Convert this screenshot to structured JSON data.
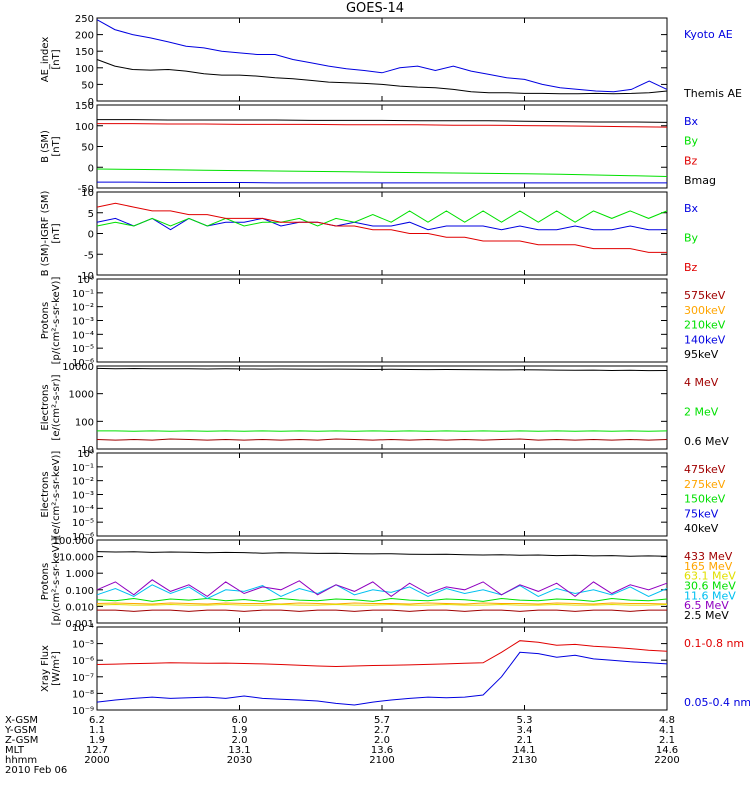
{
  "title": "GOES-14",
  "colors": {
    "black": "#000000",
    "red": "#e00000",
    "green": "#00e000",
    "blue": "#0000e0",
    "orange": "#ffa500",
    "yellow": "#e0e000",
    "cyan": "#00c0f0",
    "purple": "#9000c0",
    "darkred": "#a00000"
  },
  "chart_data": [
    {
      "type": "line",
      "ylabel": "AE_index\n[nT]",
      "scale": "linear",
      "ylim": [
        0,
        250
      ],
      "yticks": [
        "0",
        "50",
        "100",
        "150",
        "200",
        "250"
      ],
      "series": [
        {
          "name": "Kyoto AE",
          "color": "blue",
          "values": [
            245,
            215,
            200,
            190,
            178,
            165,
            160,
            150,
            145,
            140,
            140,
            125,
            115,
            105,
            97,
            92,
            85,
            100,
            105,
            92,
            105,
            90,
            80,
            70,
            65,
            50,
            40,
            35,
            30,
            28,
            35,
            60,
            35
          ]
        },
        {
          "name": "Themis AE",
          "color": "black",
          "values": [
            125,
            105,
            95,
            93,
            95,
            90,
            82,
            78,
            78,
            75,
            70,
            67,
            62,
            57,
            55,
            53,
            50,
            45,
            42,
            40,
            35,
            28,
            25,
            25,
            23,
            23,
            22,
            22,
            23,
            22,
            23,
            25,
            30
          ]
        }
      ]
    },
    {
      "type": "line",
      "ylabel": "B (SM)\n[nT]",
      "scale": "linear",
      "ylim": [
        -60,
        150
      ],
      "yticks": [
        "-50",
        "0",
        "50",
        "100",
        "150"
      ],
      "series": [
        {
          "name": "Bx",
          "color": "blue",
          "values": [
            -45,
            -45,
            -46,
            -46,
            -46,
            -47,
            -47,
            -47,
            -47,
            -47,
            -47,
            -47,
            -47,
            -47,
            -47,
            -47,
            -47
          ]
        },
        {
          "name": "By",
          "color": "green",
          "values": [
            -12,
            -13,
            -14,
            -15,
            -16,
            -17,
            -18,
            -19,
            -20,
            -21,
            -22,
            -23,
            -24,
            -25,
            -27,
            -29,
            -31
          ]
        },
        {
          "name": "Bz",
          "color": "red",
          "values": [
            103,
            103,
            102,
            102,
            101,
            101,
            101,
            100,
            100,
            100,
            99,
            99,
            98,
            97,
            96,
            95,
            94
          ]
        },
        {
          "name": "Bmag",
          "color": "black",
          "values": [
            113,
            113,
            112,
            112,
            112,
            112,
            111,
            111,
            111,
            110,
            110,
            110,
            109,
            108,
            107,
            107,
            106
          ]
        }
      ]
    },
    {
      "type": "line",
      "ylabel": "B (SM)-IGRF (SM)\n[nT]",
      "scale": "linear",
      "ylim": [
        -12,
        10
      ],
      "yticks": [
        "-10",
        "-5",
        "0",
        "5",
        "10"
      ],
      "series": [
        {
          "name": "Bx",
          "color": "blue",
          "values": [
            2,
            3,
            1,
            3,
            0,
            3,
            1,
            2,
            2,
            3,
            1,
            2,
            2,
            1,
            2,
            1,
            1,
            2,
            0,
            1,
            1,
            1,
            0,
            1,
            0,
            0,
            1,
            0,
            0,
            1,
            0,
            0
          ]
        },
        {
          "name": "By",
          "color": "green",
          "values": [
            1,
            2,
            1,
            3,
            1,
            3,
            1,
            3,
            1,
            2,
            2,
            3,
            1,
            3,
            2,
            4,
            2,
            5,
            2,
            5,
            2,
            5,
            2,
            5,
            2,
            5,
            2,
            5,
            3,
            5,
            3,
            5
          ]
        },
        {
          "name": "Bz",
          "color": "red",
          "values": [
            6,
            7,
            6,
            5,
            5,
            4,
            4,
            3,
            3,
            3,
            2,
            2,
            2,
            1,
            1,
            0,
            0,
            -1,
            -1,
            -2,
            -2,
            -3,
            -3,
            -3,
            -4,
            -4,
            -4,
            -5,
            -5,
            -5,
            -6,
            -6
          ]
        }
      ]
    },
    {
      "type": "line",
      "ylabel": "Protons\n[p/(cm²-s-sr-keV)]",
      "scale": "log",
      "ylim": [
        1e-06,
        1
      ],
      "yticks": [
        "10⁻⁶",
        "10⁻⁵",
        "10⁻⁴",
        "10⁻³",
        "10⁻²",
        "10⁻¹",
        "10⁰"
      ],
      "series": [
        {
          "name": "575keV",
          "color": "darkred",
          "values": []
        },
        {
          "name": "300keV",
          "color": "orange",
          "values": []
        },
        {
          "name": "210keV",
          "color": "green",
          "values": []
        },
        {
          "name": "140keV",
          "color": "blue",
          "values": []
        },
        {
          "name": "95keV",
          "color": "black",
          "values": []
        }
      ]
    },
    {
      "type": "line",
      "ylabel": "Electrons\n[e/(cm²-s-sr)]",
      "scale": "log",
      "ylim": [
        10,
        10000
      ],
      "yticks": [
        "10",
        "100",
        "1000",
        "10000"
      ],
      "series": [
        {
          "name": "4 MeV",
          "color": "darkred",
          "values": [
            22,
            21,
            22,
            21,
            23,
            22,
            21,
            22,
            21,
            22,
            21,
            22,
            21,
            23,
            22,
            21,
            22,
            21,
            22,
            21,
            22,
            21,
            22,
            23,
            21,
            22,
            21,
            22,
            21,
            22,
            21,
            22
          ]
        },
        {
          "name": "2 MeV",
          "color": "green",
          "values": [
            45,
            45,
            44,
            45,
            44,
            45,
            44,
            45,
            44,
            45,
            44,
            45,
            44,
            45,
            44,
            45,
            44,
            45,
            44,
            45,
            44,
            45,
            44,
            45,
            44,
            45,
            44,
            45,
            44,
            45,
            44,
            45
          ]
        },
        {
          "name": "0.6 MeV",
          "color": "black",
          "values": [
            8200,
            8000,
            8100,
            7900,
            8000,
            7900,
            7800,
            7900,
            7800,
            7700,
            7800,
            7700,
            7600,
            7700,
            7600,
            7500,
            7600,
            7500,
            7400,
            7500,
            7400,
            7300,
            7200,
            7300,
            7200,
            7100,
            7000,
            7100,
            6900,
            7000,
            6800,
            6900
          ]
        }
      ]
    },
    {
      "type": "line",
      "ylabel": "Electrons\n[e/(cm²-s-sr-keV)]",
      "scale": "log",
      "ylim": [
        1e-06,
        1
      ],
      "yticks": [
        "10⁻⁶",
        "10⁻⁵",
        "10⁻⁴",
        "10⁻³",
        "10⁻²",
        "10⁻¹",
        "10⁰"
      ],
      "series": [
        {
          "name": "475keV",
          "color": "darkred",
          "values": []
        },
        {
          "name": "275keV",
          "color": "orange",
          "values": []
        },
        {
          "name": "150keV",
          "color": "green",
          "values": []
        },
        {
          "name": "75keV",
          "color": "blue",
          "values": []
        },
        {
          "name": "40keV",
          "color": "black",
          "values": []
        }
      ]
    },
    {
      "type": "line",
      "ylabel": "Protons\n[p/(cm²-s-sr-keV)]",
      "scale": "log",
      "ylim": [
        0.001,
        100
      ],
      "yticks": [
        "0.001",
        "0.010",
        "0.100",
        "1.000",
        "10.000",
        "100.000"
      ],
      "series": [
        {
          "name": "433 MeV",
          "color": "darkred",
          "values": [
            0.006,
            0.006,
            0.005,
            0.006,
            0.006,
            0.005,
            0.006,
            0.006,
            0.005,
            0.006,
            0.006,
            0.005,
            0.006,
            0.006,
            0.005,
            0.006,
            0.006,
            0.005,
            0.006,
            0.006,
            0.005,
            0.006,
            0.006,
            0.005,
            0.006,
            0.006,
            0.005,
            0.006,
            0.006,
            0.005,
            0.006,
            0.006
          ]
        },
        {
          "name": "165 MeV",
          "color": "orange",
          "values": [
            0.015,
            0.016,
            0.015,
            0.014,
            0.016,
            0.015,
            0.014,
            0.016,
            0.015,
            0.015,
            0.014,
            0.016,
            0.015,
            0.014,
            0.016,
            0.015,
            0.015,
            0.014,
            0.016,
            0.015,
            0.014,
            0.016,
            0.015,
            0.015,
            0.014,
            0.016,
            0.015,
            0.014,
            0.016,
            0.015,
            0.015,
            0.014
          ]
        },
        {
          "name": "63.1 MeV",
          "color": "yellow",
          "values": [
            0.012,
            0.013,
            0.012,
            0.012,
            0.013,
            0.012,
            0.012,
            0.013,
            0.012,
            0.012,
            0.013,
            0.012,
            0.012,
            0.013,
            0.012,
            0.012,
            0.013,
            0.012,
            0.012,
            0.013,
            0.012,
            0.012,
            0.013,
            0.012,
            0.012,
            0.013,
            0.012,
            0.012,
            0.013,
            0.012,
            0.012,
            0.013
          ]
        },
        {
          "name": "30.6 MeV",
          "color": "green",
          "values": [
            0.025,
            0.022,
            0.03,
            0.02,
            0.028,
            0.024,
            0.03,
            0.022,
            0.026,
            0.02,
            0.03,
            0.024,
            0.022,
            0.028,
            0.025,
            0.02,
            0.03,
            0.024,
            0.022,
            0.028,
            0.025,
            0.02,
            0.03,
            0.024,
            0.022,
            0.028,
            0.025,
            0.02,
            0.03,
            0.024,
            0.022,
            0.028
          ]
        },
        {
          "name": "11.6 MeV",
          "color": "cyan",
          "values": [
            0.05,
            0.12,
            0.04,
            0.2,
            0.06,
            0.15,
            0.03,
            0.1,
            0.08,
            0.18,
            0.04,
            0.12,
            0.06,
            0.2,
            0.05,
            0.1,
            0.07,
            0.15,
            0.04,
            0.12,
            0.06,
            0.1,
            0.05,
            0.18,
            0.04,
            0.12,
            0.06,
            0.1,
            0.05,
            0.15,
            0.04,
            0.12
          ]
        },
        {
          "name": "6.5 MeV",
          "color": "purple",
          "values": [
            0.1,
            0.3,
            0.05,
            0.4,
            0.08,
            0.2,
            0.04,
            0.3,
            0.06,
            0.15,
            0.1,
            0.35,
            0.05,
            0.2,
            0.08,
            0.3,
            0.04,
            0.25,
            0.06,
            0.15,
            0.1,
            0.3,
            0.05,
            0.2,
            0.08,
            0.25,
            0.04,
            0.3,
            0.06,
            0.2,
            0.1,
            0.25
          ]
        },
        {
          "name": "2.5 MeV",
          "color": "black",
          "values": [
            20,
            19,
            19.5,
            18,
            19,
            18.5,
            17,
            18,
            17.5,
            16,
            17,
            16.5,
            15.5,
            16,
            15,
            14.5,
            15,
            14,
            13.5,
            14,
            13,
            12.5,
            13,
            12,
            12.5,
            11.5,
            12,
            11,
            11.5,
            10.5,
            11,
            10.5
          ]
        }
      ]
    },
    {
      "type": "line",
      "ylabel": "Xray Flux\n[W/m²]",
      "scale": "log",
      "ylim": [
        1e-09,
        0.0001
      ],
      "yticks": [
        "10⁻⁹",
        "10⁻⁸",
        "10⁻⁷",
        "10⁻⁶",
        "10⁻⁵",
        "10⁻⁴"
      ],
      "series": [
        {
          "name": "0.1-0.8 nm",
          "color": "red",
          "values": [
            5.5e-07,
            5.8e-07,
            6.2e-07,
            6.5e-07,
            7e-07,
            6.8e-07,
            6.5e-07,
            6.7e-07,
            6.3e-07,
            6e-07,
            5.5e-07,
            5e-07,
            4.5e-07,
            4.2e-07,
            4.5e-07,
            4.8e-07,
            5e-07,
            5.2e-07,
            5.6e-07,
            6e-07,
            6.5e-07,
            7e-07,
            3e-06,
            1.5e-05,
            1.2e-05,
            8e-06,
            9e-06,
            7e-06,
            6e-06,
            5e-06,
            4e-06,
            3.5e-06
          ]
        },
        {
          "name": "0.05-0.4 nm",
          "color": "blue",
          "values": [
            3e-09,
            4e-09,
            5e-09,
            6e-09,
            5e-09,
            5.5e-09,
            6e-09,
            5e-09,
            7e-09,
            5e-09,
            4.5e-09,
            4e-09,
            3.5e-09,
            2.5e-09,
            2e-09,
            3e-09,
            4e-09,
            5e-09,
            6e-09,
            5.5e-09,
            6e-09,
            8e-09,
            1e-07,
            3e-06,
            2.5e-06,
            1.5e-06,
            2e-06,
            1.2e-06,
            1e-06,
            8e-07,
            7e-07,
            6e-07
          ]
        }
      ]
    }
  ],
  "xaxis": {
    "row_labels": [
      "X-GSM",
      "Y-GSM",
      "Z-GSM",
      "MLT",
      "hhmm",
      "2010 Feb 06"
    ],
    "columns": [
      [
        "6.2",
        "1.1",
        "1.9",
        "12.7",
        "2000"
      ],
      [
        "6.0",
        "1.9",
        "2.0",
        "13.1",
        "2030"
      ],
      [
        "5.7",
        "2.7",
        "2.0",
        "13.6",
        "2100"
      ],
      [
        "5.3",
        "3.4",
        "2.1",
        "14.1",
        "2130"
      ],
      [
        "4.8",
        "4.1",
        "2.1",
        "14.6",
        "2200"
      ]
    ]
  }
}
